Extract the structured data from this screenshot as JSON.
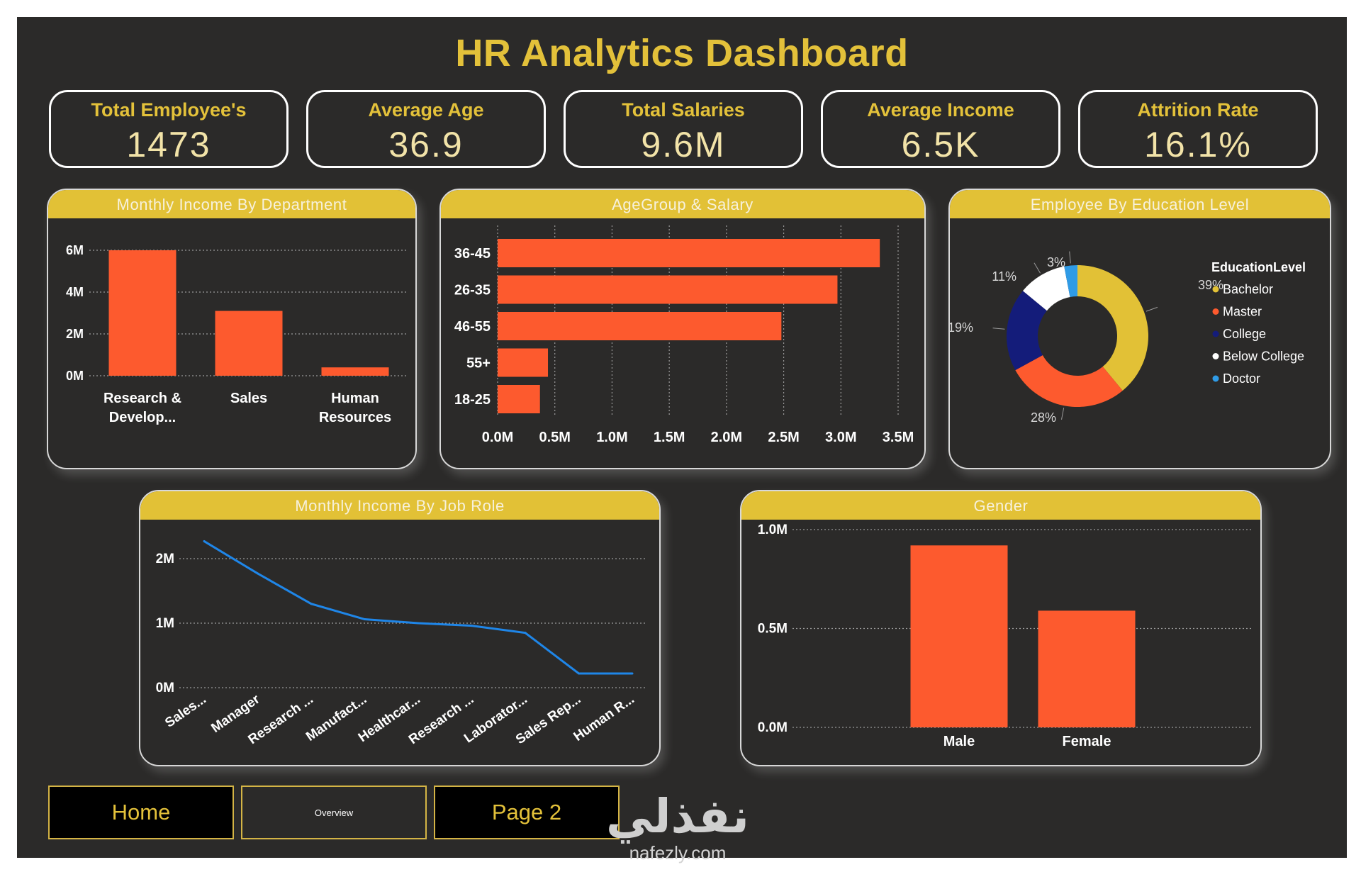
{
  "dashboard": {
    "title": "HR Analytics Dashboard"
  },
  "kpis": [
    {
      "label": "Total Employee's",
      "value": "1473"
    },
    {
      "label": "Average Age",
      "value": "36.9"
    },
    {
      "label": "Total Salaries",
      "value": "9.6M"
    },
    {
      "label": "Average Income",
      "value": "6.5K"
    },
    {
      "label": "Attrition Rate",
      "value": "16.1%"
    }
  ],
  "colors": {
    "accent": "#e2c136",
    "bar": "#fd5a2e",
    "line": "#1f86e8",
    "background": "#2b2a29",
    "bachelor": "#e2c136",
    "master": "#fd5a2e",
    "college": "#141c7a",
    "below_college": "#ffffff",
    "doctor": "#2f9be6"
  },
  "nav": {
    "home": "Home",
    "overview": "Overview",
    "page2": "Page 2"
  },
  "watermark": {
    "arabic": "نفذلي",
    "latin": "nafezly.com"
  },
  "chart_data": [
    {
      "id": "dept",
      "type": "bar",
      "title": "Monthly Income By Department",
      "categories": [
        "Research & Develop...",
        "Sales",
        "Human Resources"
      ],
      "category_lines": [
        [
          "Research &",
          "Develop..."
        ],
        [
          "Sales"
        ],
        [
          "Human",
          "Resources"
        ]
      ],
      "values": [
        6.0,
        3.1,
        0.4
      ],
      "unit": "M",
      "ylim": [
        0,
        6
      ],
      "yticks": [
        0,
        2,
        4,
        6
      ],
      "ytick_labels": [
        "0M",
        "2M",
        "4M",
        "6M"
      ],
      "grid": true
    },
    {
      "id": "age",
      "type": "bar",
      "orientation": "horizontal",
      "title": "AgeGroup & Salary",
      "categories": [
        "36-45",
        "26-35",
        "46-55",
        "55+",
        "18-25"
      ],
      "values": [
        3.34,
        2.97,
        2.48,
        0.44,
        0.37
      ],
      "unit": "M",
      "xlim": [
        0,
        3.5
      ],
      "xticks": [
        0,
        0.5,
        1.0,
        1.5,
        2.0,
        2.5,
        3.0,
        3.5
      ],
      "xtick_labels": [
        "0.0M",
        "0.5M",
        "1.0M",
        "1.5M",
        "2.0M",
        "2.5M",
        "3.0M",
        "3.5M"
      ],
      "grid": true
    },
    {
      "id": "edu",
      "type": "pie",
      "style": "donut",
      "title": "Employee By Education Level",
      "legend_title": "EducationLevel",
      "legend_position": "right",
      "categories": [
        "Bachelor",
        "Master",
        "College",
        "Below College",
        "Doctor"
      ],
      "values": [
        39,
        28,
        19,
        11,
        3
      ],
      "value_labels": [
        "39%",
        "28%",
        "19%",
        "11%",
        "3%"
      ]
    },
    {
      "id": "role",
      "type": "line",
      "title": "Monthly Income By Job Role",
      "categories": [
        "Sales...",
        "Manager",
        "Research ...",
        "Manufact...",
        "Healthcar...",
        "Research ...",
        "Laborator...",
        "Sales Rep...",
        "Human R..."
      ],
      "values": [
        2.27,
        1.77,
        1.3,
        1.06,
        1.0,
        0.96,
        0.85,
        0.22,
        0.22
      ],
      "unit": "M",
      "ylim": [
        0,
        2
      ],
      "yticks": [
        0,
        1,
        2
      ],
      "ytick_labels": [
        "0M",
        "1M",
        "2M"
      ],
      "grid": true
    },
    {
      "id": "gender",
      "type": "bar",
      "title": "Gender",
      "categories": [
        "Male",
        "Female"
      ],
      "values": [
        0.92,
        0.59
      ],
      "unit": "M",
      "ylim": [
        0,
        1.0
      ],
      "yticks": [
        0,
        0.5,
        1.0
      ],
      "ytick_labels": [
        "0.0M",
        "0.5M",
        "1.0M"
      ],
      "grid": true
    }
  ]
}
